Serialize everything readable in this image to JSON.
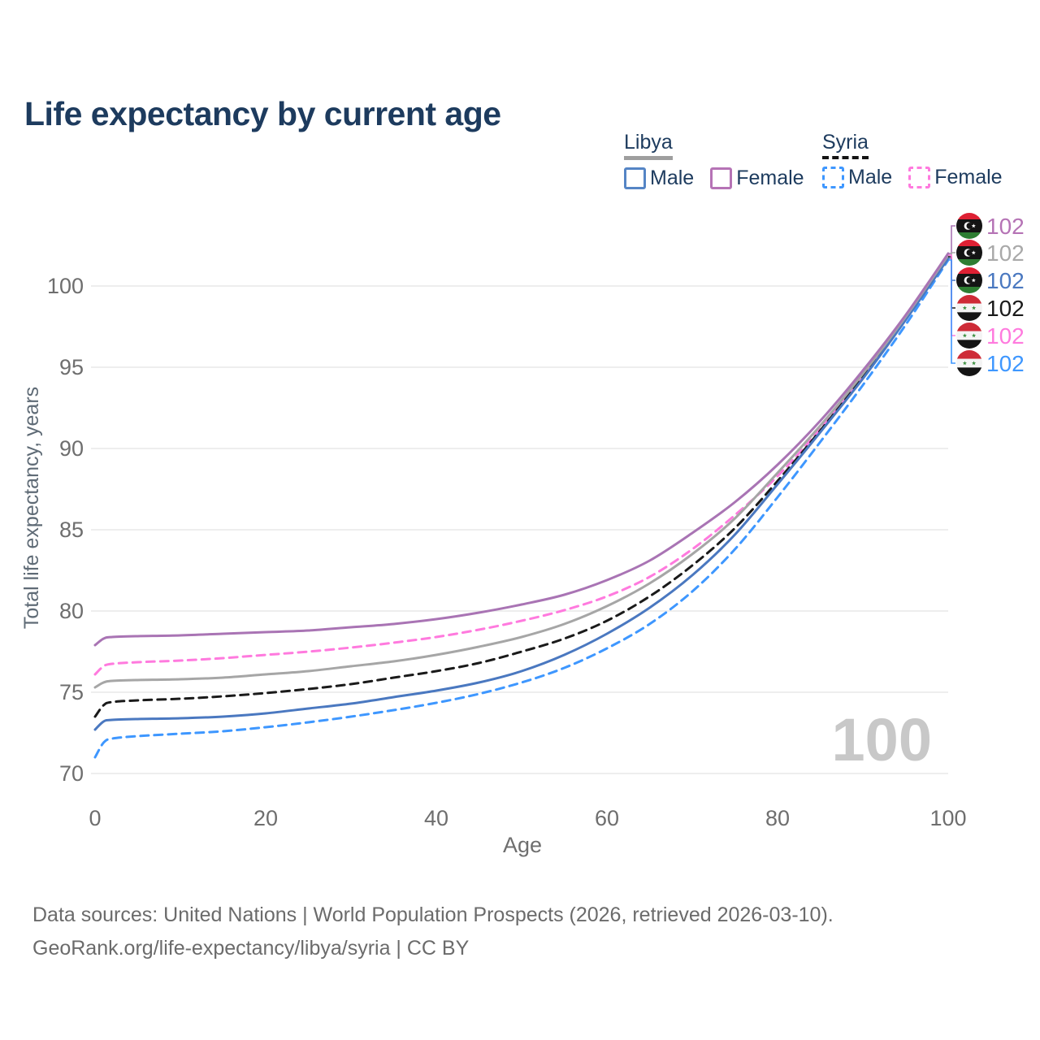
{
  "title": "Life expectancy by current age",
  "legend": {
    "groups": [
      {
        "label": "Libya",
        "line_style": "solid",
        "underline_color": "#9e9e9e",
        "items": [
          {
            "label": "Male",
            "color": "#5585c5",
            "dashed": false
          },
          {
            "label": "Female",
            "color": "#b573b5",
            "dashed": false
          }
        ]
      },
      {
        "label": "Syria",
        "line_style": "dashed",
        "underline_color": "#141414",
        "items": [
          {
            "label": "Male",
            "color": "#3e97ff",
            "dashed": true
          },
          {
            "label": "Female",
            "color": "#ff7ade",
            "dashed": true
          }
        ]
      }
    ]
  },
  "watermark": "100",
  "footer": {
    "line1": "Data sources: United Nations | World Population Prospects (2026, retrieved 2026-03-10).",
    "line2": "GeoRank.org/life-expectancy/libya/syria | CC BY"
  },
  "chart_data": {
    "type": "line",
    "title": "Life expectancy by current age",
    "xlabel": "Age",
    "ylabel": "Total life expectancy, years",
    "xlim": [
      0,
      100
    ],
    "ylim": [
      70,
      103
    ],
    "xticks": [
      0,
      20,
      40,
      60,
      80,
      100
    ],
    "yticks": [
      70,
      75,
      80,
      85,
      90,
      95,
      100
    ],
    "grid": "horizontal-only",
    "grid_color": "#e9e9e9",
    "tick_label_color": "#6e6e6e",
    "x": [
      0,
      1,
      2,
      5,
      10,
      15,
      20,
      25,
      30,
      35,
      40,
      45,
      50,
      55,
      60,
      65,
      70,
      75,
      80,
      85,
      90,
      95,
      100
    ],
    "series": [
      {
        "name": "Libya Female",
        "country": "Libya",
        "sex": "Female",
        "flag": "libya",
        "color": "#a974b4",
        "dash": "solid",
        "end_label": "102",
        "label_color": "#b573b5",
        "values": [
          77.9,
          78.3,
          78.4,
          78.45,
          78.5,
          78.6,
          78.7,
          78.8,
          79.0,
          79.2,
          79.5,
          79.9,
          80.4,
          81.0,
          81.9,
          83.1,
          84.8,
          86.7,
          89.0,
          91.7,
          94.8,
          98.2,
          102.0
        ]
      },
      {
        "name": "Libya",
        "country": "Libya",
        "sex": "Both",
        "flag": "libya",
        "color": "#a6a6a6",
        "dash": "solid",
        "end_label": "102",
        "label_color": "#a9a9a9",
        "values": [
          75.3,
          75.6,
          75.7,
          75.75,
          75.8,
          75.9,
          76.1,
          76.3,
          76.6,
          76.9,
          77.3,
          77.8,
          78.4,
          79.2,
          80.3,
          81.7,
          83.5,
          85.7,
          88.5,
          91.4,
          94.6,
          98.1,
          101.9
        ]
      },
      {
        "name": "Libya Male",
        "country": "Libya",
        "sex": "Male",
        "flag": "libya",
        "color": "#4a78c0",
        "dash": "solid",
        "end_label": "102",
        "label_color": "#4a78c0",
        "values": [
          72.7,
          73.2,
          73.3,
          73.35,
          73.4,
          73.5,
          73.7,
          74.0,
          74.3,
          74.7,
          75.1,
          75.6,
          76.3,
          77.3,
          78.6,
          80.2,
          82.2,
          84.7,
          87.8,
          91.0,
          94.3,
          97.9,
          101.7
        ]
      },
      {
        "name": "Syria",
        "country": "Syria",
        "sex": "Both",
        "flag": "syria",
        "color": "#1a1a1a",
        "dash": "dashed",
        "end_label": "102",
        "label_color": "#1a1a1a",
        "values": [
          73.5,
          74.2,
          74.4,
          74.5,
          74.6,
          74.75,
          74.95,
          75.2,
          75.5,
          75.9,
          76.3,
          76.8,
          77.5,
          78.3,
          79.4,
          80.9,
          82.8,
          85.1,
          88.0,
          91.1,
          94.4,
          98.0,
          101.8
        ]
      },
      {
        "name": "Syria Female",
        "country": "Syria",
        "sex": "Female",
        "flag": "syria",
        "color": "#ff7ade",
        "dash": "dashed",
        "end_label": "102",
        "label_color": "#ff7ade",
        "values": [
          76.1,
          76.6,
          76.75,
          76.85,
          76.95,
          77.1,
          77.3,
          77.5,
          77.75,
          78.05,
          78.4,
          78.85,
          79.4,
          80.05,
          80.9,
          82.1,
          83.8,
          85.9,
          88.3,
          91.2,
          94.5,
          98.0,
          101.9
        ]
      },
      {
        "name": "Syria Male",
        "country": "Syria",
        "sex": "Male",
        "flag": "syria",
        "color": "#3e97ff",
        "dash": "dashed",
        "end_label": "102",
        "label_color": "#3e97ff",
        "values": [
          71.0,
          71.9,
          72.15,
          72.3,
          72.45,
          72.6,
          72.85,
          73.15,
          73.5,
          73.9,
          74.35,
          74.9,
          75.6,
          76.5,
          77.7,
          79.2,
          81.2,
          83.8,
          87.0,
          90.4,
          93.9,
          97.6,
          101.6
        ]
      }
    ],
    "end_label_rows_y": [
      278,
      311,
      345,
      379,
      413,
      447
    ],
    "legend_position": "top-right"
  }
}
